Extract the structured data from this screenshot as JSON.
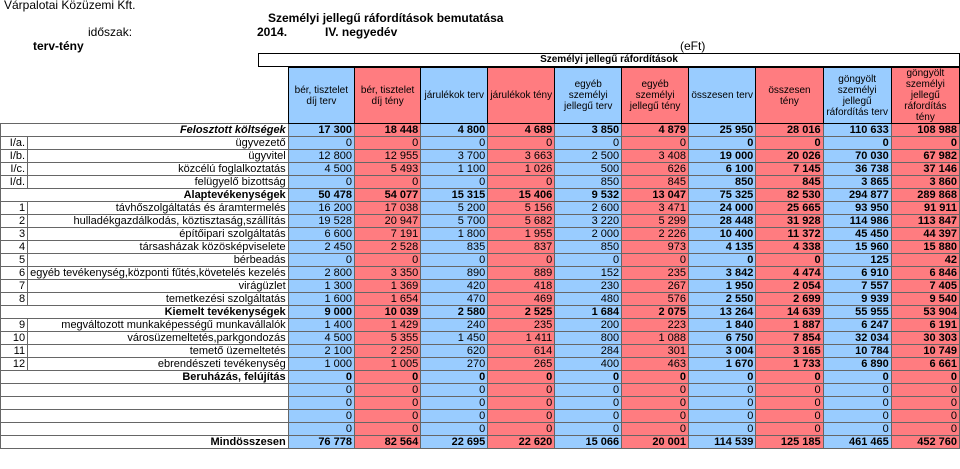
{
  "company": "Várpalotai Közüzemi Kft.",
  "title": "Személyi jellegű ráfordítások bemutatása",
  "period_label": "időszak:",
  "year": "2014.",
  "quarter": "IV. negyedév",
  "plan_actual": "terv-tény",
  "unit": "(eFt)",
  "group_header": "Személyi jellegű ráfordítások",
  "columns": [
    "bér, tisztelet díj terv",
    "bér, tisztelet díj tény",
    "járulékok terv",
    "járulékok tény",
    "egyéb személyi jellegű terv",
    "egyéb személyi jellegű tény",
    "összesen terv",
    "összesen tény",
    "göngyölt személyi jellegű ráfordítás terv",
    "göngyölt személyi jellegű ráfordítás tény"
  ],
  "rows": [
    {
      "type": "section",
      "italic": true,
      "label": "Felosztott költségek",
      "values": [
        "17 300",
        "18 448",
        "4 800",
        "4 689",
        "3 850",
        "4 879",
        "25 950",
        "28 016",
        "110 633",
        "108 988"
      ]
    },
    {
      "type": "item",
      "code": "I/a.",
      "label": "ügyvezető",
      "values": [
        "0",
        "0",
        "0",
        "0",
        "0",
        "0",
        "0",
        "0",
        "0",
        "0"
      ]
    },
    {
      "type": "item",
      "code": "I/b.",
      "label": "ügyvitel",
      "values": [
        "12 800",
        "12 955",
        "3 700",
        "3 663",
        "2 500",
        "3 408",
        "19 000",
        "20 026",
        "70 030",
        "67 982"
      ]
    },
    {
      "type": "item",
      "code": "I/c.",
      "label": "közcélú foglalkoztatás",
      "values": [
        "4 500",
        "5 493",
        "1 100",
        "1 026",
        "500",
        "626",
        "6 100",
        "7 145",
        "36 738",
        "37 146"
      ]
    },
    {
      "type": "item",
      "code": "I/d.",
      "label": "felügyelő bizottság",
      "values": [
        "0",
        "0",
        "0",
        "0",
        "850",
        "845",
        "850",
        "845",
        "3 865",
        "3 860"
      ]
    },
    {
      "type": "section",
      "italic": false,
      "label": "Alaptevékenységek",
      "values": [
        "50 478",
        "54 077",
        "15 315",
        "15 406",
        "9 532",
        "13 047",
        "75 325",
        "82 530",
        "294 877",
        "289 868"
      ]
    },
    {
      "type": "item",
      "code": "1",
      "label": "távhőszolgáltatás és áramtermelés",
      "values": [
        "16 200",
        "17 038",
        "5 200",
        "5 156",
        "2 600",
        "3 471",
        "24 000",
        "25 665",
        "93 950",
        "91 911"
      ]
    },
    {
      "type": "item",
      "code": "2",
      "label": "hulladékgazdálkodás, köztisztaság,szállítás",
      "values": [
        "19 528",
        "20 947",
        "5 700",
        "5 682",
        "3 220",
        "5 299",
        "28 448",
        "31 928",
        "114 986",
        "113 847"
      ]
    },
    {
      "type": "item",
      "code": "3",
      "label": "építőipari szolgáltatás",
      "values": [
        "6 600",
        "7 191",
        "1 800",
        "1 955",
        "2 000",
        "2 226",
        "10 400",
        "11 372",
        "45 450",
        "44 397"
      ]
    },
    {
      "type": "item",
      "code": "4",
      "label": "társasházak közösképviselete",
      "values": [
        "2 450",
        "2 528",
        "835",
        "837",
        "850",
        "973",
        "4 135",
        "4 338",
        "15 960",
        "15 880"
      ]
    },
    {
      "type": "item",
      "code": "5",
      "label": "bérbeadás",
      "values": [
        "0",
        "0",
        "0",
        "0",
        "0",
        "0",
        "0",
        "0",
        "125",
        "42"
      ]
    },
    {
      "type": "item",
      "code": "6",
      "small": true,
      "label": "egyéb tevékenység,központi fűtés,követelés kezelés",
      "values": [
        "2 800",
        "3 350",
        "890",
        "889",
        "152",
        "235",
        "3 842",
        "4 474",
        "6 910",
        "6 846"
      ]
    },
    {
      "type": "item",
      "code": "7",
      "label": "virágüzlet",
      "values": [
        "1 300",
        "1 369",
        "420",
        "418",
        "230",
        "267",
        "1 950",
        "2 054",
        "7 557",
        "7 405"
      ]
    },
    {
      "type": "item",
      "code": "8",
      "label": "temetkezési szolgáltatás",
      "values": [
        "1 600",
        "1 654",
        "470",
        "469",
        "480",
        "576",
        "2 550",
        "2 699",
        "9 939",
        "9 540"
      ]
    },
    {
      "type": "section",
      "italic": false,
      "label": "Kiemelt tevékenységek",
      "values": [
        "9 000",
        "10 039",
        "2 580",
        "2 525",
        "1 684",
        "2 075",
        "13 264",
        "14 639",
        "55 955",
        "53 904"
      ]
    },
    {
      "type": "item",
      "code": "9",
      "label": "megváltozott munkaképességű munkavállalók",
      "values": [
        "1 400",
        "1 429",
        "240",
        "235",
        "200",
        "223",
        "1 840",
        "1 887",
        "6 247",
        "6 191"
      ]
    },
    {
      "type": "item",
      "code": "10",
      "label": "városüzemeltetés,parkgondozás",
      "values": [
        "4 500",
        "5 355",
        "1 450",
        "1 411",
        "800",
        "1 088",
        "6 750",
        "7 854",
        "32 034",
        "30 303"
      ]
    },
    {
      "type": "item",
      "code": "11",
      "label": "temető üzemeltetés",
      "values": [
        "2 100",
        "2 250",
        "620",
        "614",
        "284",
        "301",
        "3 004",
        "3 165",
        "10 784",
        "10 749"
      ]
    },
    {
      "type": "item",
      "code": "12",
      "label": "ebrendészeti tevékenység",
      "values": [
        "1 000",
        "1 005",
        "270",
        "265",
        "400",
        "463",
        "1 670",
        "1 733",
        "6 890",
        "6 661"
      ]
    },
    {
      "type": "section",
      "italic": false,
      "label": "Beruházás, felújítás",
      "values": [
        "0",
        "0",
        "0",
        "0",
        "0",
        "0",
        "0",
        "0",
        "0",
        "0"
      ]
    },
    {
      "type": "blank",
      "values": [
        "0",
        "0",
        "0",
        "0",
        "0",
        "0",
        "0",
        "0",
        "0",
        "0"
      ]
    },
    {
      "type": "blank",
      "values": [
        "0",
        "0",
        "0",
        "0",
        "0",
        "0",
        "0",
        "0",
        "0",
        "0"
      ]
    },
    {
      "type": "blank",
      "values": [
        "0",
        "0",
        "0",
        "0",
        "0",
        "0",
        "0",
        "0",
        "0",
        "0"
      ]
    },
    {
      "type": "blank",
      "values": [
        "0",
        "0",
        "0",
        "0",
        "0",
        "0",
        "0",
        "0",
        "0",
        "0"
      ]
    },
    {
      "type": "total",
      "label": "Mindösszesen",
      "values": [
        "76 778",
        "82 564",
        "22 695",
        "22 620",
        "15 066",
        "20 001",
        "114 539",
        "125 185",
        "461 465",
        "452 760"
      ]
    }
  ]
}
